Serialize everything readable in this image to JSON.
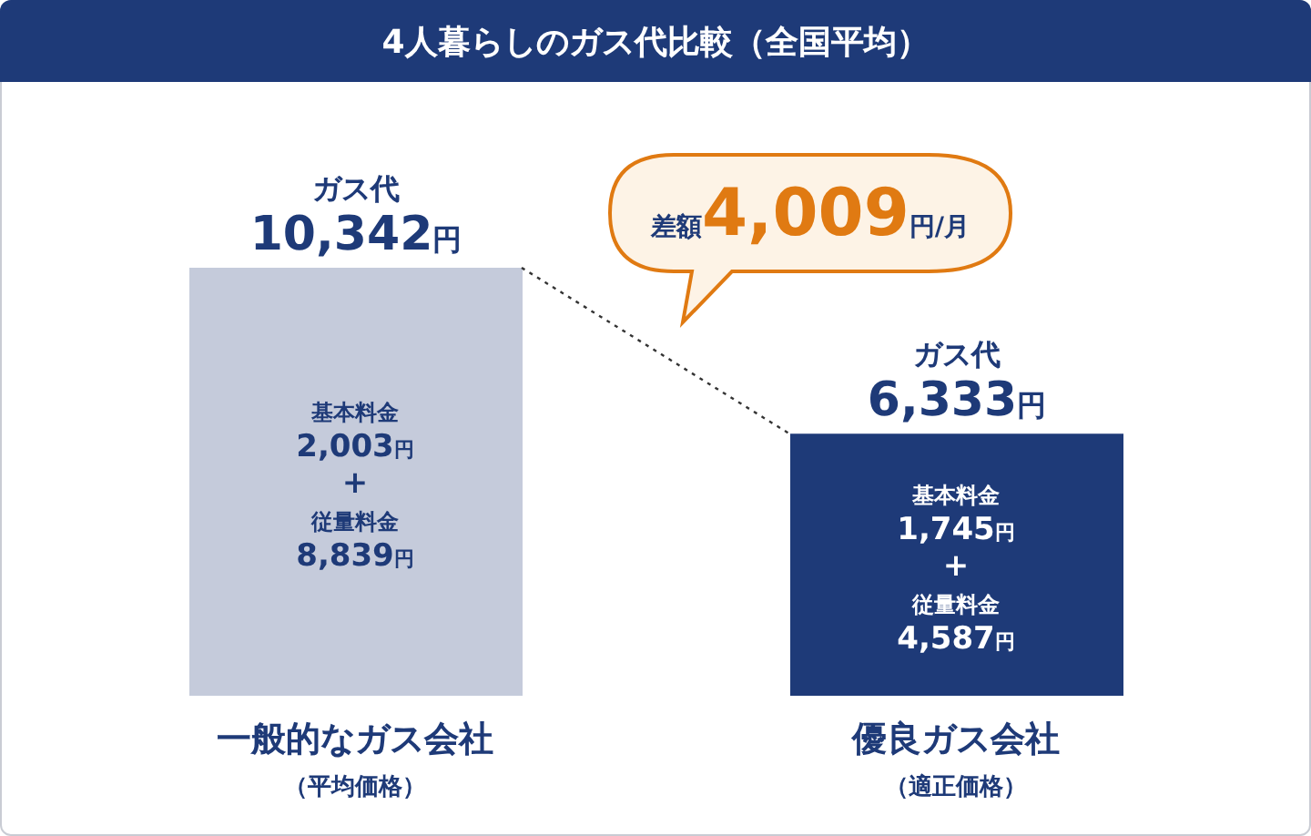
{
  "chart_data": {
    "type": "bar",
    "title": "4人暮らしのガス代比較（全国平均）",
    "categories": [
      "一般的なガス会社（平均価格）",
      "優良ガス会社（適正価格）"
    ],
    "values": [
      10342,
      6333
    ],
    "colors": [
      "#c5cbdb",
      "#1e3a78"
    ],
    "value_labels": [
      "ガス代10,342円",
      "ガス代6,333円"
    ],
    "annotations": [
      "基本料金2,003円+従量料金8,839円",
      "基本料金1,745円+従量料金4,587円",
      "差額4,009円/月"
    ],
    "grid": false,
    "legend": false
  }
}
